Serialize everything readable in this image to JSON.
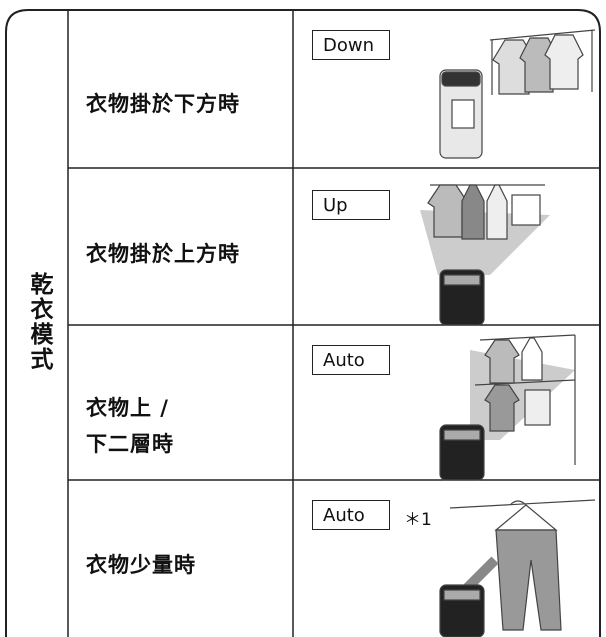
{
  "mode_label": "乾衣模式",
  "rows": [
    {
      "label": "衣物掛於下方時",
      "mode": "Down"
    },
    {
      "label": "衣物掛於上方時",
      "mode": "Up"
    },
    {
      "label_lines": [
        "衣物上 /",
        "下二層時"
      ],
      "mode": "Auto"
    },
    {
      "label": "衣物少量時",
      "mode": "Auto",
      "note": "＊1"
    }
  ]
}
